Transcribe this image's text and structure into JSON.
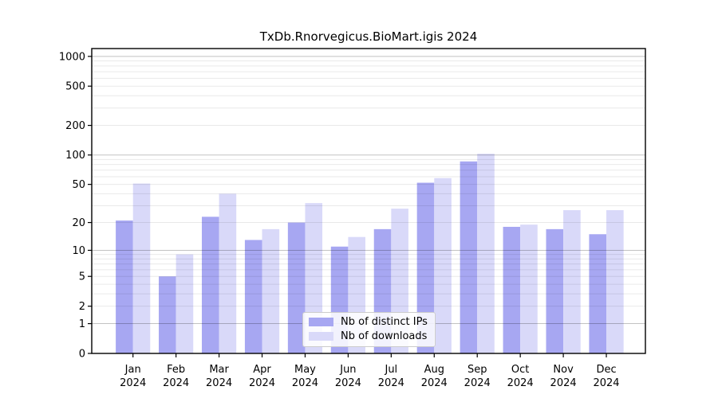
{
  "chart_data": {
    "type": "bar",
    "title": "TxDb.Rnorvegicus.BioMart.igis 2024",
    "categories": [
      "Jan",
      "Feb",
      "Mar",
      "Apr",
      "May",
      "Jun",
      "Jul",
      "Aug",
      "Sep",
      "Oct",
      "Nov",
      "Dec"
    ],
    "year": "2024",
    "series": [
      {
        "name": "Nb of distinct IPs",
        "color": "#a7a7f2",
        "values": [
          21,
          5,
          23,
          13,
          20,
          11,
          17,
          52,
          86,
          18,
          17,
          15
        ]
      },
      {
        "name": "Nb of downloads",
        "color": "#d9d9f9",
        "values": [
          51,
          9,
          40,
          17,
          32,
          14,
          28,
          58,
          103,
          19,
          27,
          27
        ]
      }
    ],
    "yscale": "log1p",
    "yticks": [
      0,
      1,
      2,
      5,
      10,
      20,
      50,
      100,
      200,
      500,
      1000
    ],
    "ylim": [
      0,
      1200
    ],
    "xlabel": "",
    "ylabel": "",
    "grid": "on",
    "legend_position": "lower center",
    "colors": {
      "major_gridline": "#c2c2c2",
      "minor_gridline": "#e9e9e9",
      "axis": "#000000",
      "background": "#ffffff"
    }
  }
}
